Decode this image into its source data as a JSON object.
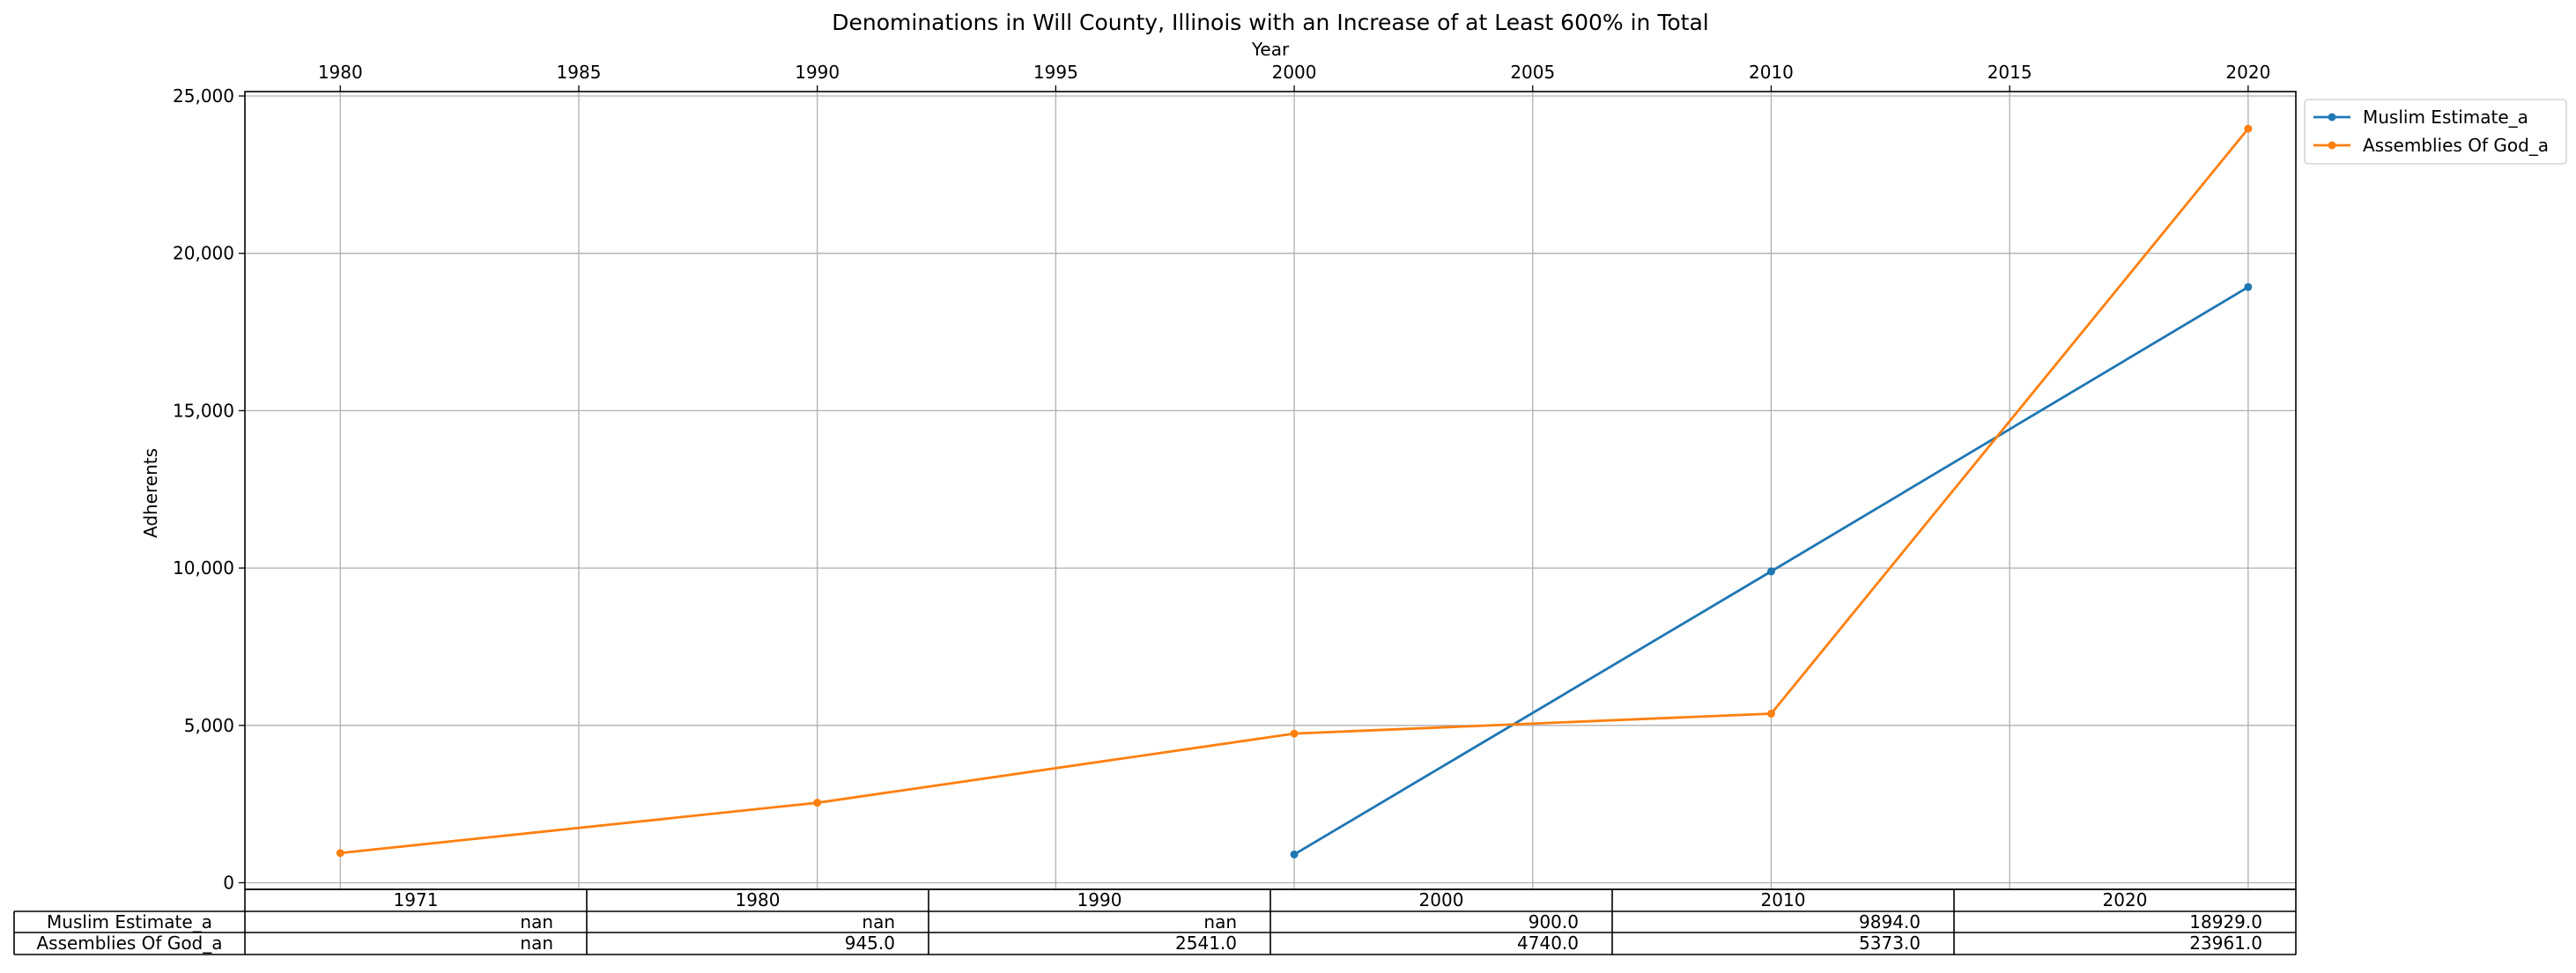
{
  "chart_data": {
    "type": "line",
    "title": "Denominations in Will County, Illinois with an Increase of at Least 600% in Total",
    "xlabel": "Year",
    "ylabel": "Adherents",
    "x_axis_position": "top",
    "xlim": [
      1978,
      2021
    ],
    "ylim": [
      0,
      25000
    ],
    "x_ticks": [
      1980,
      1985,
      1990,
      1995,
      2000,
      2005,
      2010,
      2015,
      2020
    ],
    "y_ticks": [
      0,
      5000,
      10000,
      15000,
      20000,
      25000
    ],
    "y_tick_labels": [
      "0",
      "5,000",
      "10,000",
      "15,000",
      "20,000",
      "25,000"
    ],
    "grid": true,
    "legend_position": "outside top-right",
    "series": [
      {
        "name": "Muslim Estimate_a",
        "color": "#1f77b4",
        "marker": "circle",
        "x": [
          2000,
          2010,
          2020
        ],
        "y": [
          900,
          9894,
          18929
        ]
      },
      {
        "name": "Assemblies Of God_a",
        "color": "#ff7f0e",
        "marker": "circle",
        "x": [
          1980,
          1990,
          2000,
          2010,
          2020
        ],
        "y": [
          945,
          2541,
          4740,
          5373,
          23961
        ]
      }
    ],
    "table": {
      "columns": [
        "1971",
        "1980",
        "1990",
        "2000",
        "2010",
        "2020"
      ],
      "rows": [
        {
          "label": "Muslim Estimate_a",
          "cells": [
            "nan",
            "nan",
            "nan",
            "900.0",
            "9894.0",
            "18929.0"
          ]
        },
        {
          "label": "Assemblies Of God_a",
          "cells": [
            "nan",
            "945.0",
            "2541.0",
            "4740.0",
            "5373.0",
            "23961.0"
          ]
        }
      ]
    }
  }
}
